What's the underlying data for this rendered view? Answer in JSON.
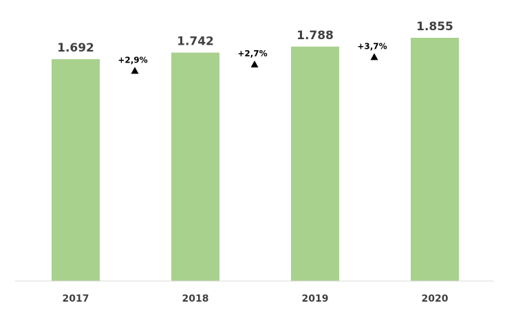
{
  "chart_data": {
    "type": "bar",
    "categories": [
      "2017",
      "2018",
      "2019",
      "2020"
    ],
    "values": [
      1692,
      1742,
      1788,
      1855
    ],
    "value_labels": [
      "1.692",
      "1.742",
      "1.788",
      "1.855"
    ],
    "growth_labels": [
      "+2,9%",
      "+2,7%",
      "+3,7%"
    ],
    "growth_icon": "triangle-up-icon",
    "title": "",
    "xlabel": "",
    "ylabel": "",
    "ylim": [
      0,
      1855
    ],
    "grid": false,
    "legend": "none",
    "colors": {
      "bar": "#a9d18e",
      "text": "#404040",
      "growth": "#000000",
      "axis": "#d9d9d9"
    }
  }
}
